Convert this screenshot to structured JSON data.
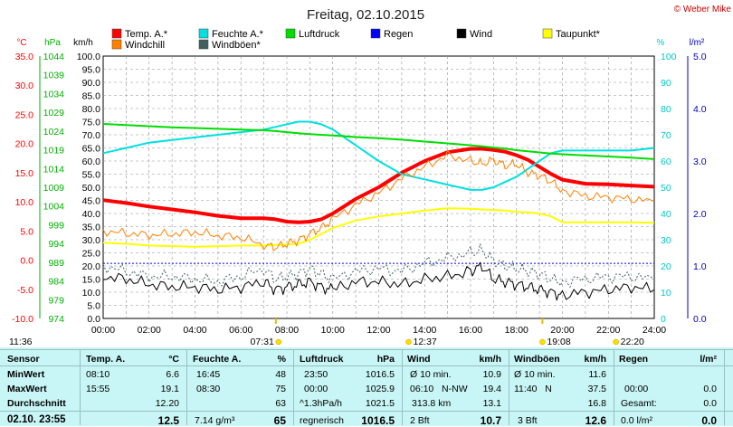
{
  "chart_data": {
    "type": "line",
    "title": "Freitag, 02.10.2015",
    "credit": "© Weber Mike",
    "x_ticks": [
      "00:00",
      "02:00",
      "04:00",
      "06:00",
      "08:00",
      "10:00",
      "12:00",
      "14:00",
      "16:00",
      "18:00",
      "20:00",
      "22:00",
      "24:00"
    ],
    "axes": {
      "temp_c": {
        "unit": "°C",
        "range": [
          -10,
          35
        ],
        "ticks": [
          "35.0",
          "30.0",
          "25.0",
          "20.0",
          "15.0",
          "10.0",
          "5.0",
          "0.0",
          "-5.0",
          "-10.0"
        ],
        "color": "#ff0000"
      },
      "pressure_hpa": {
        "unit": "hPa",
        "range": [
          974,
          1044
        ],
        "ticks": [
          "1044",
          "1039",
          "1034",
          "1029",
          "1024",
          "1019",
          "1014",
          "1009",
          "1004",
          "999",
          "994",
          "989",
          "984",
          "979",
          "974"
        ],
        "color": "#00b000"
      },
      "wind_kmh": {
        "unit": "km/h",
        "range": [
          0,
          100
        ],
        "ticks": [
          "100.0",
          "95.0",
          "90.0",
          "85.0",
          "80.0",
          "75.0",
          "70.0",
          "65.0",
          "60.0",
          "55.0",
          "50.0",
          "45.0",
          "40.0",
          "35.0",
          "30.0",
          "25.0",
          "20.0",
          "15.0",
          "10.0",
          "5.0",
          "0.0"
        ],
        "color": "#000000"
      },
      "humidity_pct": {
        "unit": "%",
        "range": [
          0,
          100
        ],
        "ticks": [
          "100",
          "90",
          "80",
          "70",
          "60",
          "50",
          "40",
          "30",
          "20",
          "10",
          "0"
        ],
        "color": "#00c8c8"
      },
      "rain_lm2": {
        "unit": "l/m²",
        "range": [
          0,
          5
        ],
        "ticks": [
          "5.0",
          "4.0",
          "3.0",
          "2.0",
          "1.0",
          "0.0"
        ],
        "color": "#0000c0"
      }
    },
    "legend": [
      {
        "name": "Temp. A.*",
        "color": "#ff0000"
      },
      {
        "name": "Feuchte A.*",
        "color": "#00e0e0"
      },
      {
        "name": "Luftdruck",
        "color": "#00dd00"
      },
      {
        "name": "Regen",
        "color": "#0000ff"
      },
      {
        "name": "Wind",
        "color": "#000000"
      },
      {
        "name": "Taupunkt*",
        "color": "#ffff00"
      },
      {
        "name": "Windchill",
        "color": "#ff8000"
      },
      {
        "name": "Windböen*",
        "color": "#406060"
      }
    ],
    "x_hours": [
      0,
      1,
      2,
      3,
      4,
      5,
      6,
      7,
      7.5,
      8,
      8.5,
      9,
      9.5,
      10,
      11,
      12,
      13,
      14,
      15,
      16,
      16.5,
      17,
      17.5,
      18,
      18.5,
      19,
      19.5,
      20,
      21,
      22,
      23,
      24
    ],
    "series": [
      {
        "name": "Temp. A.*",
        "axis": "temp_c",
        "color": "#ff0000",
        "width": 4,
        "values": [
          10.3,
          9.8,
          9.2,
          8.7,
          8.2,
          7.6,
          7.2,
          7.2,
          7.0,
          6.6,
          6.5,
          6.6,
          7.0,
          8.0,
          10.5,
          12.5,
          15.0,
          17.0,
          18.5,
          19.1,
          19.1,
          18.9,
          18.6,
          18.0,
          17.2,
          16.0,
          14.8,
          13.8,
          13.1,
          13.0,
          12.8,
          12.6
        ]
      },
      {
        "name": "Feuchte A.*",
        "axis": "humidity_pct",
        "color": "#00e0e0",
        "width": 2,
        "values": [
          63,
          65,
          67,
          68,
          69,
          70,
          71,
          72,
          73,
          74,
          75,
          75,
          74,
          72,
          66,
          60,
          55,
          53,
          51,
          49,
          49,
          50,
          52,
          54,
          57,
          60,
          63,
          64,
          64,
          64,
          64,
          65
        ]
      },
      {
        "name": "Luftdruck",
        "axis": "pressure_hpa",
        "color": "#00dd00",
        "width": 2,
        "values": [
          1025.9,
          1025.6,
          1025.3,
          1025.0,
          1024.8,
          1024.6,
          1024.4,
          1024.2,
          1024.0,
          1023.7,
          1023.4,
          1023.2,
          1023.0,
          1022.8,
          1022.4,
          1022.1,
          1021.7,
          1021.2,
          1020.7,
          1020.2,
          1019.9,
          1019.6,
          1019.3,
          1018.9,
          1018.6,
          1018.3,
          1018.0,
          1017.8,
          1017.5,
          1017.2,
          1016.9,
          1016.5
        ]
      },
      {
        "name": "Taupunkt*",
        "axis": "temp_c",
        "color": "#ffff00",
        "width": 2,
        "values": [
          3.0,
          2.8,
          2.5,
          2.4,
          2.3,
          2.4,
          2.5,
          2.5,
          2.6,
          2.7,
          2.8,
          3.5,
          4.5,
          5.5,
          6.8,
          7.5,
          8.0,
          8.5,
          8.9,
          8.8,
          8.7,
          8.6,
          8.5,
          8.3,
          8.2,
          8.0,
          7.5,
          6.5,
          6.5,
          6.5,
          6.5,
          6.4
        ]
      },
      {
        "name": "Windchill",
        "axis": "temp_c",
        "color": "#ff8000",
        "width": 1,
        "values": [
          5.0,
          4.6,
          4.3,
          4.5,
          4.8,
          4.2,
          3.9,
          2.6,
          2.2,
          2.8,
          3.4,
          4.5,
          5.5,
          7.0,
          9.5,
          11.5,
          14.0,
          16.0,
          18.0,
          17.0,
          16.5,
          17.2,
          16.2,
          16.5,
          15.0,
          14.5,
          13.5,
          12.0,
          11.0,
          10.8,
          10.5,
          10.0
        ]
      },
      {
        "name": "Wind",
        "axis": "wind_kmh",
        "color": "#000000",
        "width": 1,
        "values": [
          16,
          15,
          13,
          12,
          12,
          11,
          12,
          14,
          11,
          12,
          13,
          14,
          12,
          11,
          14,
          14,
          13,
          15,
          16,
          18,
          20,
          15,
          14,
          13,
          12,
          11,
          10,
          9,
          10,
          11,
          12,
          11
        ]
      },
      {
        "name": "Windböen*",
        "axis": "wind_kmh",
        "color": "#406060",
        "width": 1,
        "dashed": true,
        "values": [
          20,
          18,
          16,
          16,
          15,
          14,
          16,
          19,
          15,
          16,
          17,
          19,
          17,
          15,
          18,
          19,
          18,
          21,
          23,
          25,
          26,
          22,
          20,
          19,
          18,
          17,
          15,
          14,
          15,
          16,
          16,
          15
        ]
      }
    ],
    "reference_line": {
      "axis": "rain_lm2",
      "value": 1.05,
      "color": "#0000ff",
      "style": "dotted"
    },
    "sun_markers": [
      {
        "label": "11:36",
        "hour": 7.3
      },
      {
        "label": "07:31",
        "hour": 7.52
      },
      {
        "label": "12:37",
        "hour": 13.3
      },
      {
        "label": "19:08",
        "hour": 19.13
      },
      {
        "label": "22:20",
        "hour": 22.33
      }
    ]
  },
  "table": {
    "row_labels": [
      "Sensor",
      "MinWert",
      "MaxWert",
      "Durchschnitt",
      "02.10. 23:55"
    ],
    "columns": [
      {
        "header": "Temp. A.",
        "unit": "°C",
        "rows": [
          [
            "08:10",
            "6.6"
          ],
          [
            "15:55",
            "19.1"
          ],
          [
            "",
            "12.20"
          ],
          [
            "",
            "12.5"
          ]
        ]
      },
      {
        "header": "Feuchte A.",
        "unit": "%",
        "rows": [
          [
            "16:45",
            "48"
          ],
          [
            "08:30",
            "75"
          ],
          [
            "",
            "63"
          ],
          [
            "7.14 g/m³",
            "65"
          ]
        ]
      },
      {
        "header": "Luftdruck",
        "unit": "hPa",
        "rows": [
          [
            "23:50",
            "1016.5"
          ],
          [
            "00:00",
            "1025.9"
          ],
          [
            "^1.3hPa/h",
            "1021.5"
          ],
          [
            "regnerisch",
            "1016.5"
          ]
        ]
      },
      {
        "header": "Wind",
        "unit": "km/h",
        "rows": [
          [
            "Ø 10 min.",
            "10.9"
          ],
          [
            "06:10   N-NW",
            "19.4"
          ],
          [
            "313.8 km",
            "13.1"
          ],
          [
            "2 Bft",
            "10.7"
          ]
        ]
      },
      {
        "header": "Windböen",
        "unit": "km/h",
        "rows": [
          [
            "Ø 10 min.",
            "11.6"
          ],
          [
            "11:40   N",
            "37.5"
          ],
          [
            "",
            "16.8"
          ],
          [
            "3 Bft",
            "12.6"
          ]
        ]
      },
      {
        "header": "Regen",
        "unit": "l/m²",
        "rows": [
          [
            "",
            ""
          ],
          [
            "00:00",
            "0.0"
          ],
          [
            "Gesamt:",
            "0.0"
          ],
          [
            "0.0 l/m²",
            "0.0"
          ]
        ]
      }
    ]
  }
}
